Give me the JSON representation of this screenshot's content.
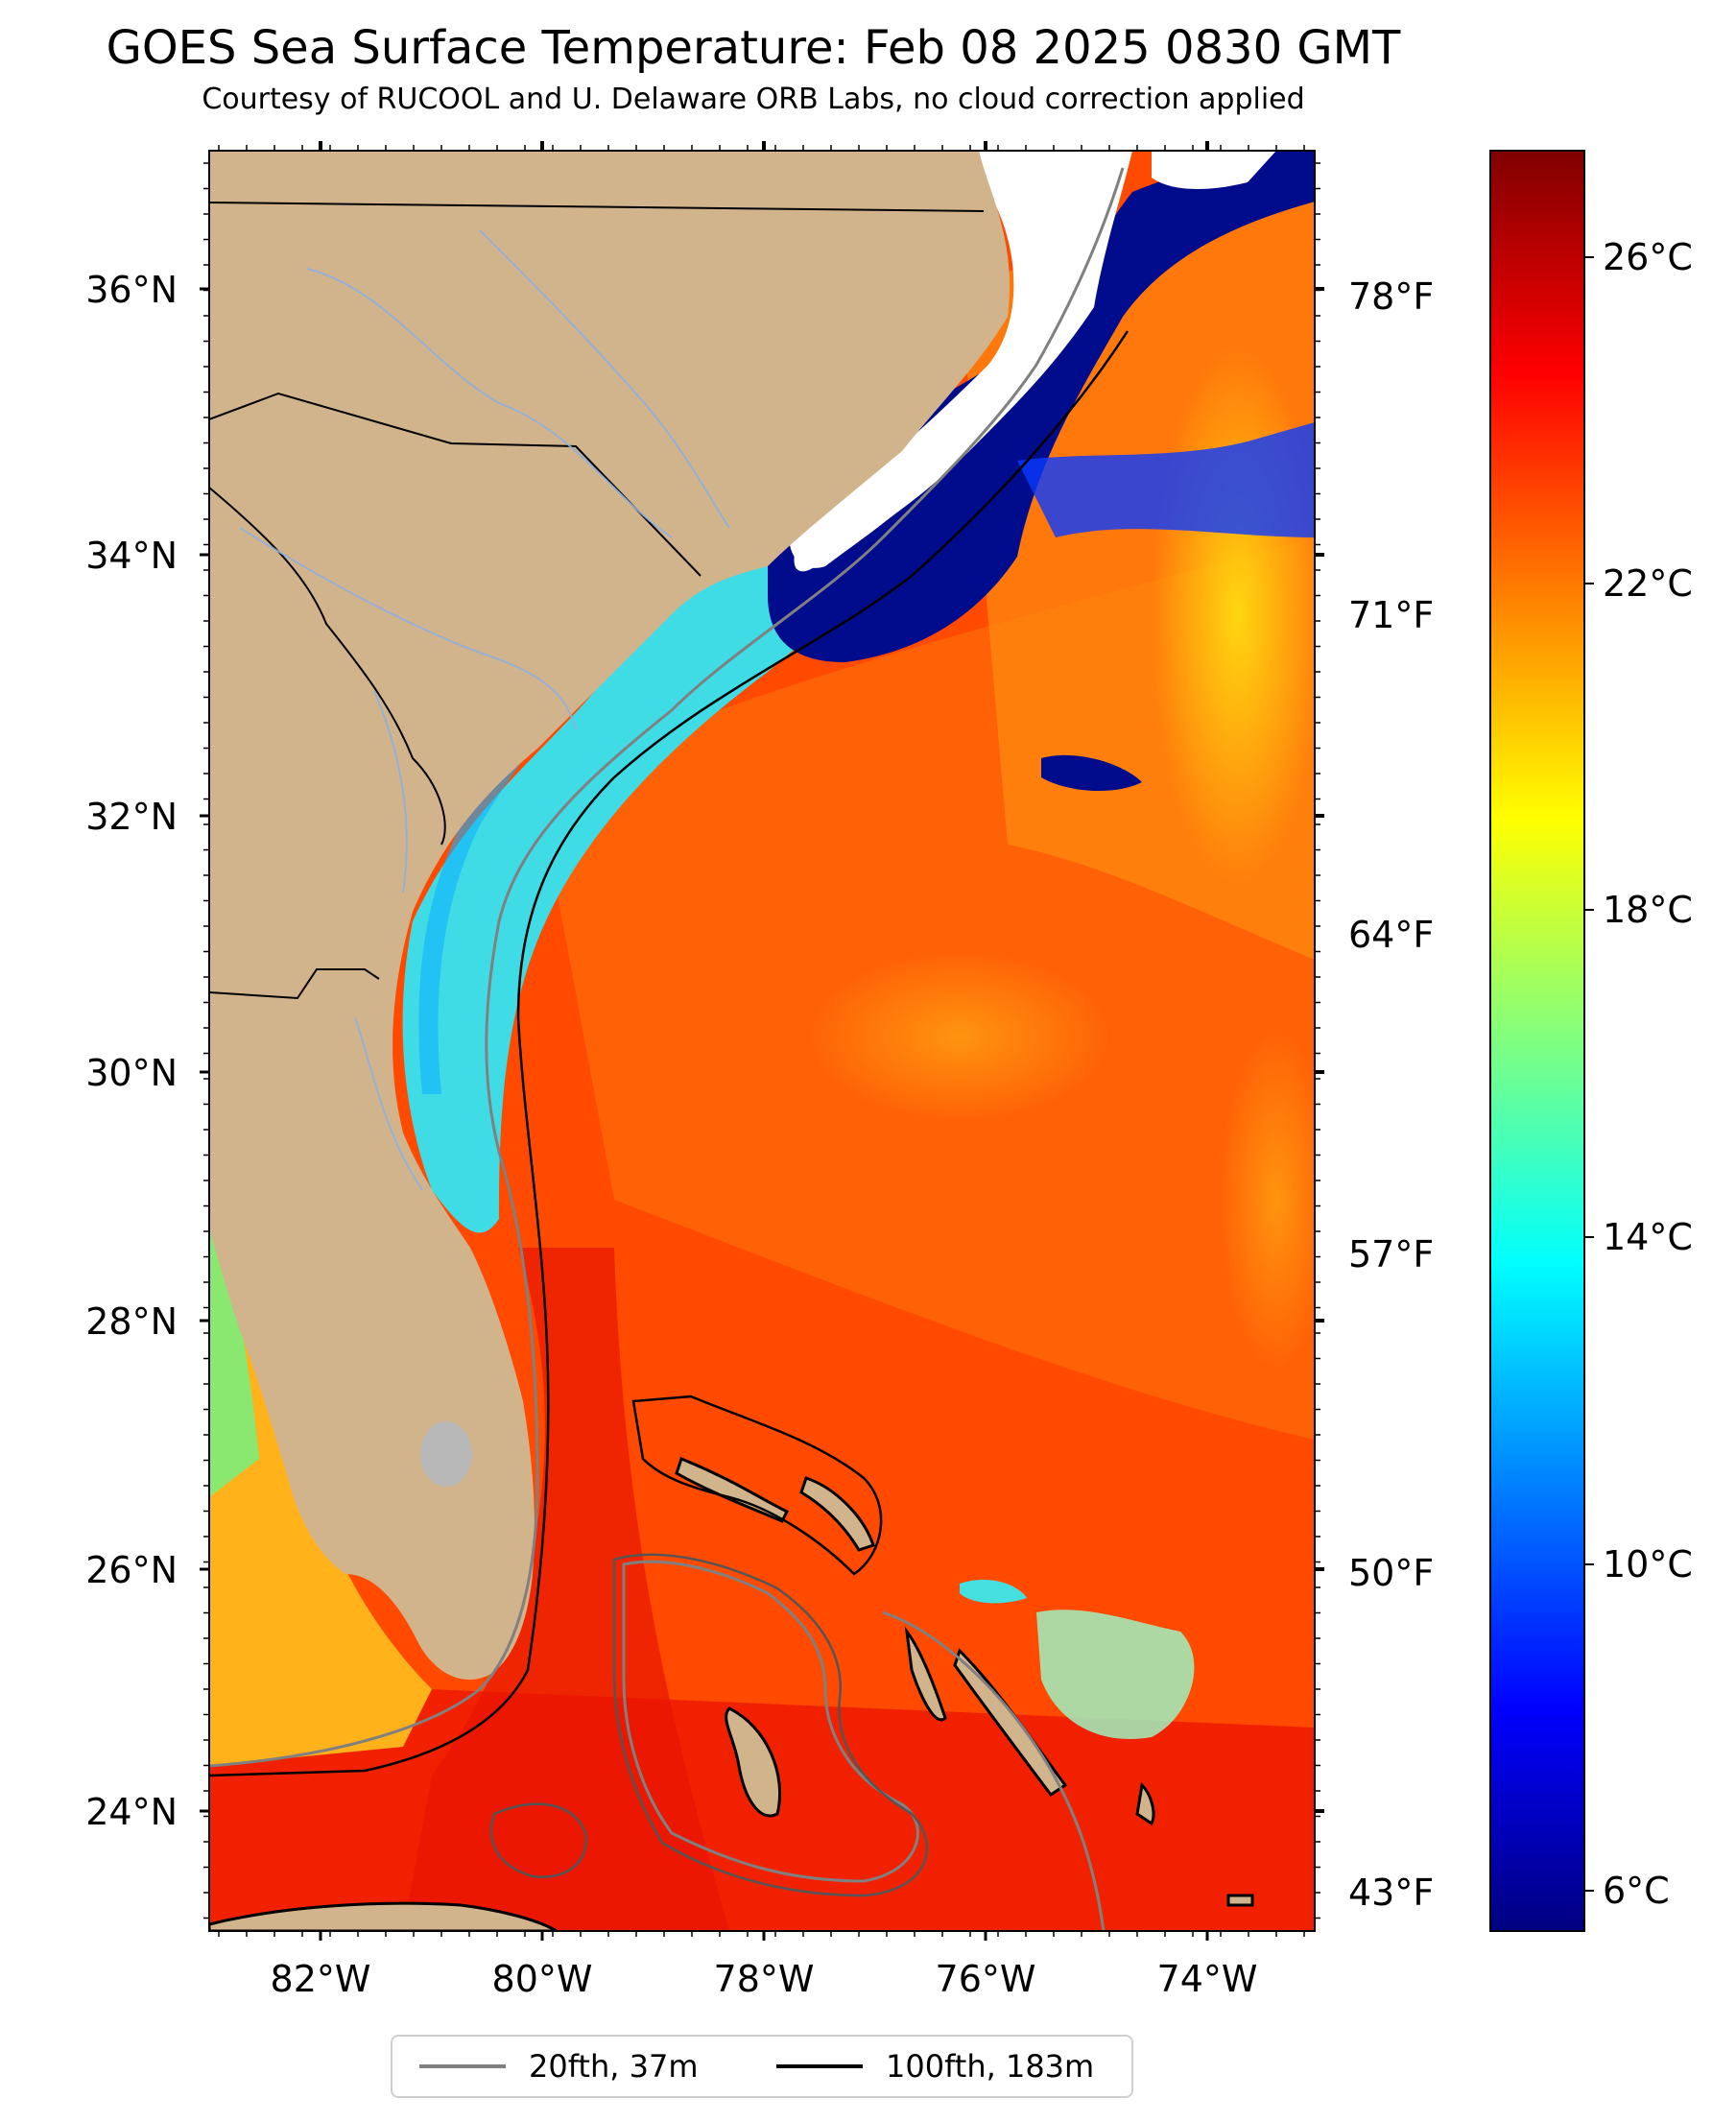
{
  "title": "GOES Sea Surface Temperature: Feb 08 2025 0830 GMT",
  "subtitle": "Courtesy of RUCOOL and U. Delaware ORB Labs, no cloud correction applied",
  "map": {
    "lat_ticks": [
      "36°N",
      "34°N",
      "32°N",
      "30°N",
      "28°N",
      "26°N",
      "24°N"
    ],
    "lon_ticks": [
      "82°W",
      "80°W",
      "78°W",
      "76°W",
      "74°W"
    ],
    "fahrenheit_ticks": [
      "78°F",
      "71°F",
      "64°F",
      "57°F",
      "50°F",
      "43°F"
    ],
    "land_color": "#d2b48c",
    "ocean_warm_color": "#ff3300",
    "ocean_cool_color": "#33ddee",
    "cold_color": "#000c8c",
    "coastline_color": "#000000",
    "river_color": "#8fb0dd"
  },
  "colorbar": {
    "labels": [
      "26°C",
      "22°C",
      "18°C",
      "14°C",
      "10°C",
      "6°C"
    ],
    "range": [
      5.6,
      27.4
    ],
    "colormap": [
      "#000080",
      "#0000ff",
      "#0080ff",
      "#00ffff",
      "#80ff80",
      "#ffff00",
      "#ff8000",
      "#ff0000",
      "#800000"
    ]
  },
  "legend": {
    "items": [
      {
        "label": "20fth, 37m",
        "color": "#808080"
      },
      {
        "label": "100fth, 183m",
        "color": "#000000"
      }
    ]
  }
}
